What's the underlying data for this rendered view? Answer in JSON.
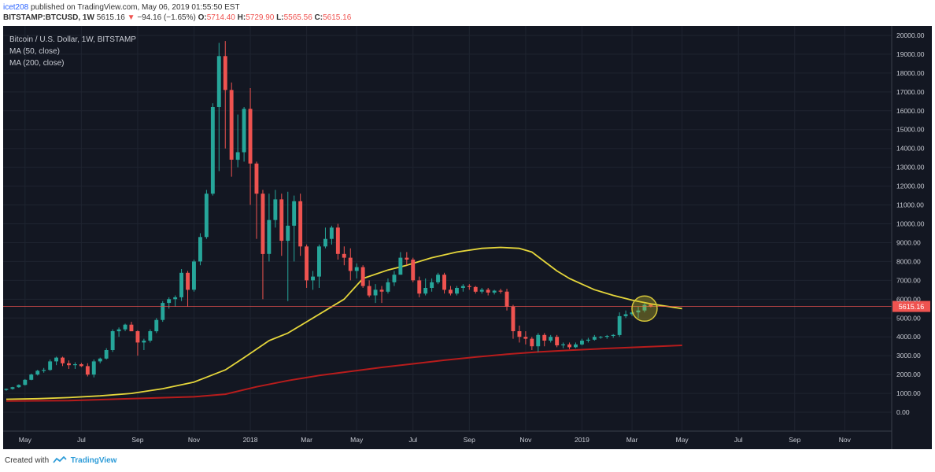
{
  "header": {
    "username": "icet208",
    "publish_text": "published on TradingView.com, May 06, 2019 01:55:50 EST",
    "symbol": "BITSTAMP:BTCUSD, 1W",
    "price": "5615.16",
    "change": "−94.16 (−1.65%)",
    "o_label": "O:",
    "o_value": "5714.40",
    "h_label": "H:",
    "h_value": "5729.90",
    "l_label": "L:",
    "l_value": "5565.56",
    "c_label": "C:",
    "c_value": "5615.16"
  },
  "legend": {
    "title": "Bitcoin / U.S. Dollar, 1W, BITSTAMP",
    "ma50": "MA (50, close)",
    "ma200": "MA (200, close)"
  },
  "footer": {
    "created_with": "Created with",
    "brand": "TradingView"
  },
  "colors": {
    "up": "#26a69a",
    "down": "#ef5350",
    "ma50": "#e5d63b",
    "ma200": "#b71c1c",
    "background": "#131722",
    "grid": "#1f2430"
  },
  "chart_data": {
    "type": "candlestick",
    "title": "Bitcoin / U.S. Dollar, 1W, BITSTAMP",
    "ylim": [
      -1000,
      20500
    ],
    "y_ticks": [
      0,
      1000,
      2000,
      3000,
      4000,
      5000,
      6000,
      7000,
      8000,
      9000,
      10000,
      11000,
      12000,
      13000,
      14000,
      15000,
      16000,
      17000,
      18000,
      19000,
      20000
    ],
    "y_tick_labels": [
      "0.00",
      "1000.00",
      "2000.00",
      "3000.00",
      "4000.00",
      "5000.00",
      "6000.00",
      "7000.00",
      "8000.00",
      "9000.00",
      "10000.00",
      "11000.00",
      "12000.00",
      "13000.00",
      "14000.00",
      "15000.00",
      "16000.00",
      "17000.00",
      "18000.00",
      "19000.00",
      "20000.00"
    ],
    "x_ticks": [
      {
        "label": "May",
        "week": 3
      },
      {
        "label": "Jul",
        "week": 12
      },
      {
        "label": "Sep",
        "week": 21
      },
      {
        "label": "Nov",
        "week": 30
      },
      {
        "label": "2018",
        "week": 39
      },
      {
        "label": "Mar",
        "week": 48
      },
      {
        "label": "May",
        "week": 56
      },
      {
        "label": "Jul",
        "week": 65
      },
      {
        "label": "Sep",
        "week": 74
      },
      {
        "label": "Nov",
        "week": 83
      },
      {
        "label": "2019",
        "week": 92
      },
      {
        "label": "Mar",
        "week": 100
      },
      {
        "label": "May",
        "week": 108
      },
      {
        "label": "Jul",
        "week": 117
      },
      {
        "label": "Sep",
        "week": 126
      },
      {
        "label": "Nov",
        "week": 134
      }
    ],
    "total_weeks": 142,
    "last_price_label": "5615.16",
    "last_price": 5615.16,
    "annotation": "circle around latest candles",
    "candles": [
      [
        1180,
        1260,
        1140,
        1240
      ],
      [
        1240,
        1350,
        1200,
        1330
      ],
      [
        1330,
        1480,
        1300,
        1450
      ],
      [
        1450,
        1760,
        1420,
        1720
      ],
      [
        1720,
        2050,
        1700,
        2000
      ],
      [
        2000,
        2250,
        1950,
        2200
      ],
      [
        2200,
        2350,
        2100,
        2250
      ],
      [
        2250,
        2800,
        2200,
        2700
      ],
      [
        2700,
        2950,
        2500,
        2900
      ],
      [
        2900,
        2950,
        2450,
        2600
      ],
      [
        2600,
        2750,
        2300,
        2500
      ],
      [
        2500,
        2650,
        2300,
        2550
      ],
      [
        2550,
        2620,
        2400,
        2450
      ],
      [
        2450,
        2600,
        1900,
        2000
      ],
      [
        2000,
        2800,
        1850,
        2700
      ],
      [
        2700,
        2900,
        2600,
        2850
      ],
      [
        2850,
        3400,
        2800,
        3300
      ],
      [
        3300,
        4400,
        3200,
        4300
      ],
      [
        4300,
        4500,
        4000,
        4400
      ],
      [
        4400,
        4700,
        4300,
        4650
      ],
      [
        4650,
        4800,
        4400,
        4300
      ],
      [
        4300,
        4350,
        3000,
        3700
      ],
      [
        3700,
        3900,
        3300,
        3800
      ],
      [
        3800,
        4400,
        3700,
        4300
      ],
      [
        4300,
        5000,
        4200,
        4900
      ],
      [
        4900,
        5900,
        4800,
        5800
      ],
      [
        5800,
        6100,
        5500,
        6000
      ],
      [
        6000,
        6200,
        5600,
        6100
      ],
      [
        6100,
        7600,
        5900,
        7400
      ],
      [
        7400,
        7500,
        5600,
        6500
      ],
      [
        6500,
        8100,
        6400,
        8000
      ],
      [
        8000,
        9500,
        7800,
        9300
      ],
      [
        9300,
        11800,
        9200,
        11600
      ],
      [
        11600,
        16400,
        11500,
        16200
      ],
      [
        16200,
        19600,
        12800,
        18900
      ],
      [
        18900,
        19700,
        14000,
        17100
      ],
      [
        17100,
        17500,
        12500,
        13400
      ],
      [
        13400,
        15800,
        13000,
        13800
      ],
      [
        13800,
        16200,
        13300,
        16100
      ],
      [
        16100,
        17200,
        11000,
        13200
      ],
      [
        13200,
        13300,
        9200,
        11600
      ],
      [
        11600,
        11800,
        6000,
        8400
      ],
      [
        8400,
        11600,
        8000,
        10200
      ],
      [
        10200,
        11800,
        9800,
        11300
      ],
      [
        11300,
        11600,
        8300,
        9100
      ],
      [
        9100,
        11700,
        5900,
        9900
      ],
      [
        9900,
        11500,
        8000,
        11200
      ],
      [
        11200,
        11600,
        8300,
        8800
      ],
      [
        8800,
        8900,
        6600,
        7000
      ],
      [
        7000,
        7500,
        6500,
        7200
      ],
      [
        7200,
        8900,
        6600,
        8800
      ],
      [
        8800,
        9800,
        8700,
        9200
      ],
      [
        9200,
        9900,
        8900,
        9800
      ],
      [
        9800,
        10000,
        8100,
        8400
      ],
      [
        8400,
        8800,
        7800,
        8200
      ],
      [
        8200,
        8700,
        7000,
        7500
      ],
      [
        7500,
        7900,
        7100,
        7700
      ],
      [
        7700,
        7800,
        6600,
        6700
      ],
      [
        6700,
        7000,
        6100,
        6200
      ],
      [
        6200,
        6800,
        5800,
        6500
      ],
      [
        6500,
        6700,
        5800,
        6400
      ],
      [
        6400,
        7100,
        6300,
        6900
      ],
      [
        6900,
        7500,
        6700,
        7300
      ],
      [
        7300,
        8500,
        7300,
        8200
      ],
      [
        8200,
        8500,
        7800,
        8100
      ],
      [
        8100,
        8200,
        6900,
        7000
      ],
      [
        7000,
        7200,
        6100,
        6300
      ],
      [
        6300,
        7100,
        6200,
        6600
      ],
      [
        6600,
        7100,
        6400,
        6900
      ],
      [
        6900,
        7400,
        6800,
        7300
      ],
      [
        7300,
        7400,
        6300,
        6500
      ],
      [
        6500,
        6700,
        6200,
        6300
      ],
      [
        6300,
        6700,
        6200,
        6600
      ],
      [
        6600,
        6800,
        6400,
        6700
      ],
      [
        6700,
        6800,
        6500,
        6650
      ],
      [
        6650,
        6700,
        6300,
        6400
      ],
      [
        6400,
        6600,
        6300,
        6500
      ],
      [
        6500,
        6600,
        6200,
        6350
      ],
      [
        6350,
        6500,
        6250,
        6450
      ],
      [
        6450,
        6550,
        6300,
        6400
      ],
      [
        6400,
        6550,
        5400,
        5600
      ],
      [
        5600,
        5700,
        3900,
        4300
      ],
      [
        4300,
        4600,
        3700,
        4000
      ],
      [
        4000,
        4300,
        3600,
        3900
      ],
      [
        3900,
        4000,
        3300,
        3500
      ],
      [
        3500,
        4200,
        3200,
        4100
      ],
      [
        4100,
        4200,
        3500,
        3800
      ],
      [
        3800,
        4100,
        3700,
        4000
      ],
      [
        4000,
        4100,
        3450,
        3550
      ],
      [
        3550,
        3700,
        3400,
        3600
      ],
      [
        3600,
        3700,
        3350,
        3450
      ],
      [
        3450,
        3700,
        3400,
        3600
      ],
      [
        3600,
        3900,
        3550,
        3800
      ],
      [
        3800,
        3950,
        3700,
        3850
      ],
      [
        3850,
        4100,
        3800,
        4000
      ],
      [
        4000,
        4050,
        3900,
        4000
      ],
      [
        4000,
        4100,
        3900,
        4050
      ],
      [
        4050,
        4150,
        3950,
        4100
      ],
      [
        4100,
        5300,
        4000,
        5100
      ],
      [
        5100,
        5400,
        5000,
        5200
      ],
      [
        5200,
        5500,
        5100,
        5300
      ],
      [
        5300,
        5600,
        5000,
        5400
      ],
      [
        5400,
        5800,
        5300,
        5700
      ],
      [
        5714,
        5730,
        5566,
        5615
      ]
    ],
    "ma50": [
      [
        0,
        690
      ],
      [
        5,
        720
      ],
      [
        10,
        780
      ],
      [
        15,
        870
      ],
      [
        20,
        1000
      ],
      [
        25,
        1250
      ],
      [
        30,
        1600
      ],
      [
        35,
        2250
      ],
      [
        38,
        2900
      ],
      [
        42,
        3800
      ],
      [
        45,
        4200
      ],
      [
        48,
        4800
      ],
      [
        51,
        5400
      ],
      [
        54,
        6000
      ],
      [
        57,
        7100
      ],
      [
        61,
        7550
      ],
      [
        64,
        7800
      ],
      [
        68,
        8200
      ],
      [
        72,
        8500
      ],
      [
        76,
        8700
      ],
      [
        79,
        8750
      ],
      [
        82,
        8700
      ],
      [
        84,
        8500
      ],
      [
        86,
        8000
      ],
      [
        88,
        7500
      ],
      [
        90,
        7100
      ],
      [
        92,
        6800
      ],
      [
        94,
        6500
      ],
      [
        97,
        6200
      ],
      [
        100,
        5950
      ],
      [
        103,
        5750
      ],
      [
        106,
        5600
      ],
      [
        108,
        5500
      ]
    ],
    "ma200": [
      [
        0,
        600
      ],
      [
        10,
        620
      ],
      [
        20,
        720
      ],
      [
        30,
        820
      ],
      [
        35,
        960
      ],
      [
        40,
        1350
      ],
      [
        45,
        1680
      ],
      [
        50,
        1950
      ],
      [
        55,
        2170
      ],
      [
        60,
        2380
      ],
      [
        65,
        2570
      ],
      [
        70,
        2760
      ],
      [
        75,
        2930
      ],
      [
        80,
        3080
      ],
      [
        85,
        3200
      ],
      [
        90,
        3290
      ],
      [
        95,
        3370
      ],
      [
        100,
        3440
      ],
      [
        105,
        3510
      ],
      [
        108,
        3550
      ]
    ]
  }
}
